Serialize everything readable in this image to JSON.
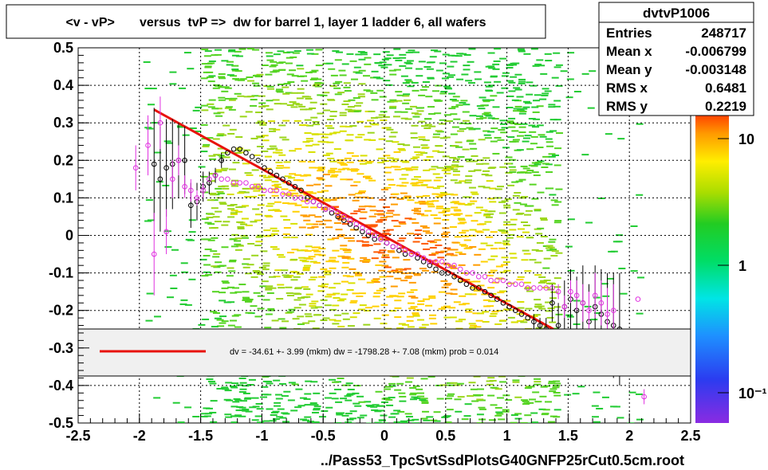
{
  "chart_data": {
    "type": "scatter",
    "title": "<v - vP>       versus  tvP =>  dw for barrel 1, layer 1 ladder 6, all wafers",
    "xlabel": "../Pass53_TpcSvtSsdPlotsG40GNFP25rCut0.5cm.root",
    "ylabel": "",
    "xlim": [
      -2.5,
      2.5
    ],
    "ylim": [
      -0.5,
      0.5
    ],
    "x_ticks": [
      "-2.5",
      "-2",
      "-1.5",
      "-1",
      "-0.5",
      "0",
      "0.5",
      "1",
      "1.5",
      "2",
      "2.5"
    ],
    "y_ticks": [
      "0.5",
      "0.4",
      "0.3",
      "0.2",
      "0.1",
      "0",
      "-0.1",
      "-0.2",
      "-0.3",
      "-0.4",
      "-0.5"
    ],
    "grid": true,
    "colorbar": {
      "scale": "log",
      "tick_labels": [
        "10",
        "1",
        "10⁻¹"
      ],
      "tick_values": [
        10,
        1,
        0.1
      ]
    },
    "stats": {
      "name": "dvtvP1006",
      "rows": [
        {
          "label": "Entries",
          "value": "248717"
        },
        {
          "label": "Mean x",
          "value": "-0.006799"
        },
        {
          "label": "Mean y",
          "value": "-0.003148"
        },
        {
          "label": "RMS x",
          "value": "0.6481"
        },
        {
          "label": "RMS y",
          "value": "0.2219"
        }
      ]
    },
    "fit_legend": "dv =  -34.61 +-  3.99 (mkm) dw = -1798.28 +-  7.08 (mkm) prob = 0.014",
    "fit_line": {
      "color": "#e8120c",
      "x": [
        -1.88,
        1.38
      ],
      "y": [
        0.335,
        -0.25
      ]
    },
    "series": [
      {
        "name": "",
        "color": "#000000",
        "x": [
          -1.88,
          -1.83,
          -1.78,
          -1.73,
          -1.68,
          -1.63,
          -1.58,
          -1.53,
          -1.48,
          -1.43,
          -1.38,
          -1.33,
          -1.28,
          -1.23,
          -1.18,
          -1.13,
          -1.08,
          -1.03,
          -0.98,
          -0.93,
          -0.88,
          -0.83,
          -0.78,
          -0.73,
          -0.68,
          -0.63,
          -0.58,
          -0.53,
          -0.48,
          -0.43,
          -0.38,
          -0.33,
          -0.28,
          -0.23,
          -0.18,
          -0.13,
          -0.08,
          -0.03,
          0.02,
          0.07,
          0.12,
          0.17,
          0.22,
          0.27,
          0.32,
          0.37,
          0.42,
          0.47,
          0.52,
          0.57,
          0.62,
          0.67,
          0.72,
          0.77,
          0.82,
          0.87,
          0.92,
          0.97,
          1.02,
          1.07,
          1.12,
          1.17,
          1.22,
          1.27,
          1.32,
          1.37,
          1.42,
          1.47,
          1.52,
          1.57,
          1.62,
          1.67,
          1.72,
          1.77,
          1.82,
          1.87,
          1.92
        ],
        "y": [
          0.19,
          0.15,
          0.18,
          0.19,
          0.2,
          0.2,
          0.08,
          0.09,
          0.13,
          0.14,
          0.16,
          0.2,
          0.22,
          0.23,
          0.23,
          0.22,
          0.21,
          0.2,
          0.18,
          0.17,
          0.16,
          0.15,
          0.14,
          0.13,
          0.12,
          0.1,
          0.09,
          0.08,
          0.07,
          0.06,
          0.05,
          0.04,
          0.03,
          0.02,
          0.01,
          0.0,
          -0.01,
          -0.01,
          -0.02,
          -0.03,
          -0.04,
          -0.05,
          -0.05,
          -0.06,
          -0.07,
          -0.08,
          -0.09,
          -0.1,
          -0.1,
          -0.11,
          -0.12,
          -0.13,
          -0.14,
          -0.14,
          -0.15,
          -0.16,
          -0.17,
          -0.18,
          -0.19,
          -0.2,
          -0.21,
          -0.22,
          -0.23,
          -0.24,
          -0.25,
          -0.18,
          -0.24,
          -0.19,
          -0.17,
          -0.2,
          -0.18,
          -0.23,
          -0.19,
          -0.21,
          -0.23,
          -0.24,
          -0.25
        ],
        "err": [
          0.15,
          0.14,
          0.13,
          0.12,
          0.1,
          0.09,
          0.06,
          0.05,
          0.04,
          0.03,
          0.02,
          0.02,
          0.01,
          0.01,
          0.01,
          0.01,
          0.01,
          0.01,
          0.01,
          0.01,
          0.01,
          0.01,
          0.01,
          0.01,
          0.01,
          0.01,
          0.01,
          0.01,
          0.01,
          0.01,
          0.01,
          0.01,
          0.01,
          0.01,
          0.01,
          0.01,
          0.01,
          0.01,
          0.01,
          0.01,
          0.01,
          0.01,
          0.01,
          0.01,
          0.01,
          0.01,
          0.01,
          0.01,
          0.01,
          0.01,
          0.01,
          0.01,
          0.01,
          0.01,
          0.01,
          0.01,
          0.01,
          0.01,
          0.01,
          0.01,
          0.01,
          0.01,
          0.02,
          0.02,
          0.03,
          0.05,
          0.06,
          0.07,
          0.08,
          0.09,
          0.1,
          0.1,
          0.11,
          0.12,
          0.13,
          0.14,
          0.15
        ]
      },
      {
        "name": "",
        "color": "#e030e0",
        "x": [
          -2.03,
          -1.93,
          -1.88,
          -1.83,
          -1.78,
          -1.73,
          -1.68,
          -1.63,
          -1.58,
          -1.53,
          -1.48,
          -1.43,
          -1.38,
          -1.33,
          -1.28,
          -1.23,
          -1.18,
          -1.13,
          -1.08,
          -1.03,
          -0.98,
          -0.93,
          -0.88,
          -0.83,
          -0.78,
          -0.73,
          -0.68,
          -0.63,
          -0.58,
          -0.53,
          -0.48,
          -0.43,
          -0.38,
          -0.33,
          -0.28,
          -0.23,
          -0.18,
          -0.13,
          -0.08,
          -0.03,
          0.02,
          0.07,
          0.12,
          0.17,
          0.22,
          0.27,
          0.32,
          0.37,
          0.42,
          0.47,
          0.52,
          0.57,
          0.62,
          0.67,
          0.72,
          0.77,
          0.82,
          0.87,
          0.92,
          0.97,
          1.02,
          1.07,
          1.12,
          1.17,
          1.22,
          1.27,
          1.32,
          1.37,
          1.42,
          1.47,
          1.52,
          1.57,
          1.62,
          1.67,
          1.72,
          1.77,
          1.82,
          1.87,
          2.07,
          2.12
        ],
        "y": [
          0.18,
          0.24,
          -0.05,
          0.3,
          0.01,
          0.15,
          0.2,
          0.13,
          0.12,
          0.1,
          0.12,
          0.15,
          0.16,
          0.15,
          0.15,
          0.14,
          0.14,
          0.14,
          0.13,
          0.13,
          0.12,
          0.12,
          0.12,
          0.11,
          0.11,
          0.1,
          0.1,
          0.09,
          0.09,
          0.08,
          0.07,
          0.07,
          0.06,
          0.05,
          0.04,
          0.03,
          0.02,
          0.01,
          0.0,
          -0.01,
          -0.02,
          -0.03,
          -0.03,
          -0.04,
          -0.05,
          -0.05,
          -0.06,
          -0.07,
          -0.07,
          -0.07,
          -0.08,
          -0.08,
          -0.09,
          -0.1,
          -0.1,
          -0.11,
          -0.11,
          -0.12,
          -0.12,
          -0.12,
          -0.13,
          -0.13,
          -0.13,
          -0.14,
          -0.14,
          -0.14,
          -0.14,
          -0.14,
          -0.15,
          -0.19,
          -0.15,
          -0.16,
          -0.18,
          -0.2,
          -0.16,
          -0.18,
          -0.21,
          -0.2,
          -0.17,
          -0.43
        ],
        "err": [
          0.06,
          0.08,
          0.11,
          0.07,
          0.06,
          0.05,
          0.04,
          0.03,
          0.03,
          0.02,
          0.02,
          0.01,
          0.01,
          0.01,
          0.01,
          0.01,
          0.01,
          0.01,
          0.01,
          0.01,
          0.01,
          0.01,
          0.01,
          0.01,
          0.01,
          0.01,
          0.01,
          0.01,
          0.01,
          0.01,
          0.01,
          0.01,
          0.01,
          0.01,
          0.01,
          0.01,
          0.01,
          0.01,
          0.01,
          0.01,
          0.01,
          0.01,
          0.01,
          0.01,
          0.01,
          0.01,
          0.01,
          0.01,
          0.01,
          0.01,
          0.01,
          0.01,
          0.01,
          0.01,
          0.01,
          0.01,
          0.01,
          0.01,
          0.01,
          0.01,
          0.01,
          0.01,
          0.01,
          0.01,
          0.01,
          0.01,
          0.01,
          0.01,
          0.02,
          0.03,
          0.03,
          0.04,
          0.05,
          0.05,
          0.06,
          0.06,
          0.07,
          0.07,
          0.01,
          0.02
        ]
      }
    ]
  }
}
